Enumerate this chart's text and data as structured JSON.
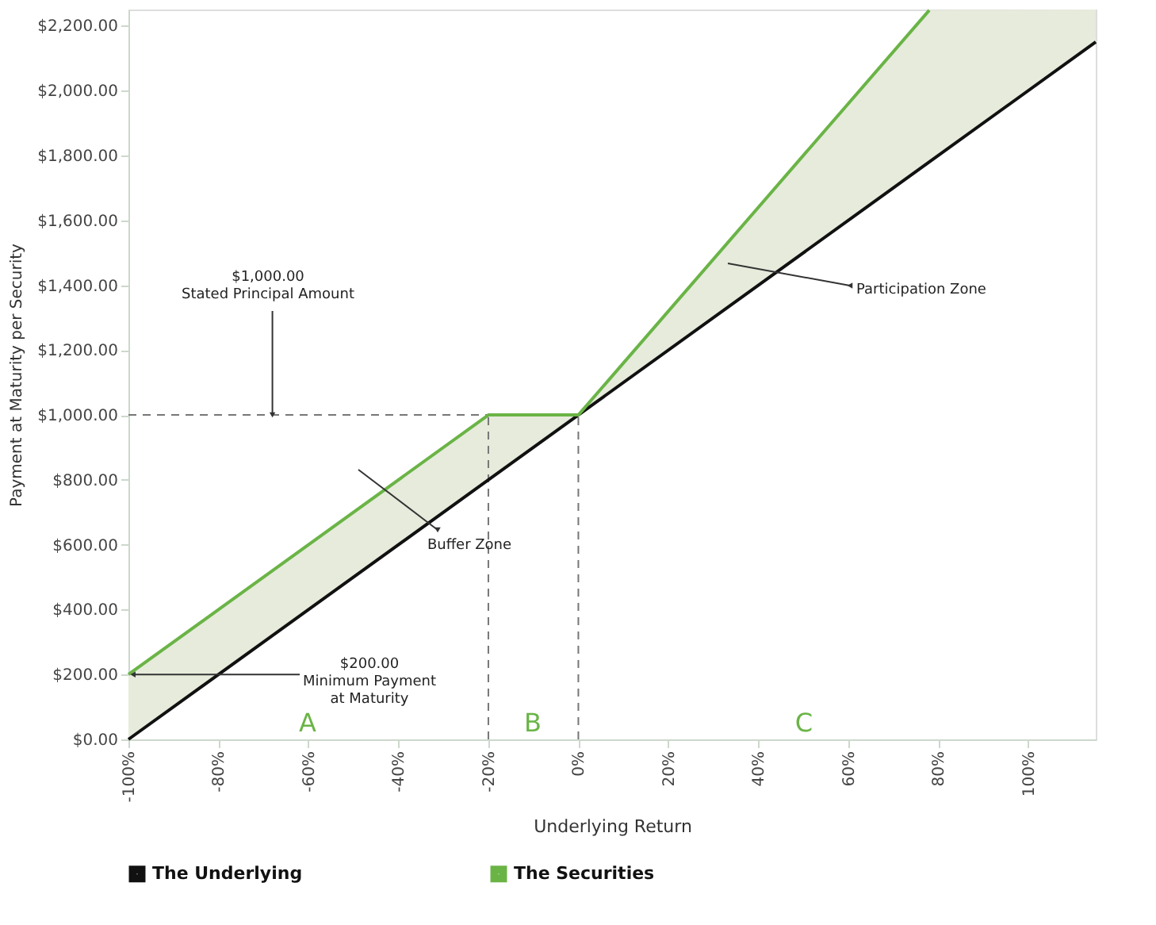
{
  "chart_data": {
    "type": "line",
    "xlabel": "Underlying Return",
    "ylabel": "Payment at Maturity per Security",
    "xlim": [
      -100,
      115
    ],
    "ylim": [
      0,
      2250
    ],
    "xticks": [
      {
        "value": -100,
        "label": "-100%"
      },
      {
        "value": -80,
        "label": "-80%"
      },
      {
        "value": -60,
        "label": "-60%"
      },
      {
        "value": -40,
        "label": "-40%"
      },
      {
        "value": -20,
        "label": "-20%"
      },
      {
        "value": 0,
        "label": "0%"
      },
      {
        "value": 20,
        "label": "20%"
      },
      {
        "value": 40,
        "label": "40%"
      },
      {
        "value": 60,
        "label": "60%"
      },
      {
        "value": 80,
        "label": "80%"
      },
      {
        "value": 100,
        "label": "100%"
      }
    ],
    "yticks": [
      {
        "value": 0,
        "label": "$0.00"
      },
      {
        "value": 200,
        "label": "$200.00"
      },
      {
        "value": 400,
        "label": "$400.00"
      },
      {
        "value": 600,
        "label": "$600.00"
      },
      {
        "value": 800,
        "label": "$800.00"
      },
      {
        "value": 1000,
        "label": "$1,000.00"
      },
      {
        "value": 1200,
        "label": "$1,200.00"
      },
      {
        "value": 1400,
        "label": "$1,400.00"
      },
      {
        "value": 1600,
        "label": "$1,600.00"
      },
      {
        "value": 1800,
        "label": "$1,800.00"
      },
      {
        "value": 2000,
        "label": "$2,000.00"
      },
      {
        "value": 2200,
        "label": "$2,200.00"
      }
    ],
    "series": [
      {
        "name": "The Underlying",
        "type": "line",
        "color": "#111111",
        "x": [
          -100,
          -20,
          0,
          78,
          115
        ],
        "values": [
          0,
          800,
          1000,
          1780,
          2150
        ],
        "lower": [
          0,
          800,
          1000,
          1780,
          2150
        ],
        "upper": [
          200,
          1000,
          1000,
          2248,
          2250
        ]
      },
      {
        "name": "The Securities",
        "type": "line",
        "color": "#6ab446",
        "x": [
          -100,
          -20,
          0,
          78
        ],
        "values": [
          200,
          1000,
          1000,
          2248
        ]
      }
    ],
    "ref_lines": [
      {
        "axis": "y",
        "value": 1000,
        "color": "#777777",
        "line_style": "dashed"
      },
      {
        "axis": "x",
        "value": -20,
        "color": "#777777",
        "line_style": "dashed"
      },
      {
        "axis": "x",
        "value": 0,
        "color": "#777777",
        "line_style": "dashed"
      }
    ],
    "annotations": [
      {
        "text": "$1,000.00\nStated Principal Amount",
        "x": -68,
        "y": 1000
      },
      "Participation Zone",
      "Buffer Zone",
      {
        "text": "$200.00\nMinimum Payment\nat Maturity",
        "x": -99,
        "y": 200
      },
      "A",
      "B",
      "C"
    ],
    "grid": false,
    "legend": "bottom",
    "marker": "none",
    "line_style": "solid"
  }
}
